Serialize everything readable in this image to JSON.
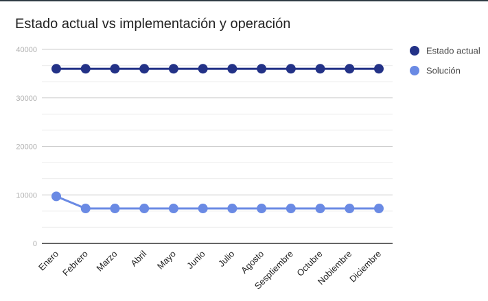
{
  "chart_data": {
    "type": "line",
    "title": "Estado actual vs implementación y operación",
    "xlabel": "",
    "ylabel": "",
    "categories": [
      "Enero",
      "Febrero",
      "Marzo",
      "Abril",
      "Mayo",
      "Junio",
      "Julio",
      "Agosto",
      "Sesptiembre",
      "Octubre",
      "Nobiembre",
      "Diciembre"
    ],
    "series": [
      {
        "name": "Estado actual",
        "color": "#233287",
        "values": [
          36000,
          36000,
          36000,
          36000,
          36000,
          36000,
          36000,
          36000,
          36000,
          36000,
          36000,
          36000
        ]
      },
      {
        "name": "Solución",
        "color": "#6a8ae4",
        "values": [
          9700,
          7200,
          7200,
          7200,
          7200,
          7200,
          7200,
          7200,
          7200,
          7200,
          7200,
          7200
        ]
      }
    ],
    "ylim": [
      0,
      40000
    ],
    "yticks": [
      0,
      10000,
      20000,
      30000,
      40000
    ],
    "grid": true,
    "minor_grid": true,
    "legend": "right"
  }
}
